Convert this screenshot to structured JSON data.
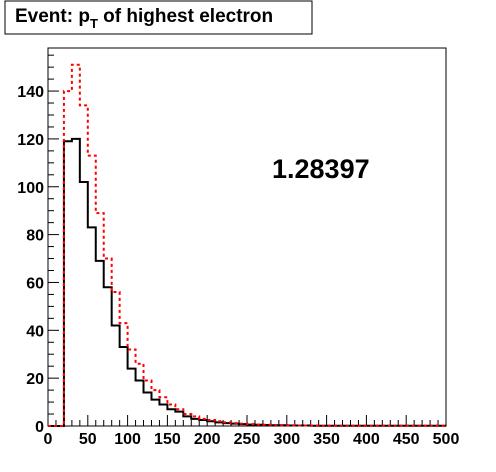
{
  "chart_data": {
    "type": "histogram",
    "title": {
      "prefix": "Event: p",
      "subscript": "T",
      "suffix": " of highest electron"
    },
    "annotation": "1.28397",
    "xlim": [
      0,
      500
    ],
    "ylim": [
      0,
      158
    ],
    "x_ticks": [
      0,
      50,
      100,
      150,
      200,
      250,
      300,
      350,
      400,
      450,
      500
    ],
    "y_ticks": [
      0,
      20,
      40,
      60,
      80,
      100,
      120,
      140
    ],
    "bin_width": 10,
    "bin_start": 0,
    "series": [
      {
        "style": "solid",
        "color": "#000000",
        "values": [
          0,
          0,
          119,
          120,
          102,
          83,
          69,
          58,
          42,
          33,
          24,
          19,
          14,
          11,
          9,
          7,
          6,
          4,
          3,
          2.5,
          2,
          1.5,
          1.2,
          1,
          0.8,
          0.6,
          0.5,
          0.4,
          0.3,
          0.3,
          0.2,
          0.2,
          0.2,
          0.1,
          0.1,
          0.1,
          0.1,
          0.1,
          0.1,
          0.1,
          0.1,
          0.1,
          0.1,
          0.1,
          0.1,
          0.1,
          0.1,
          0.1,
          0.1,
          0.1
        ]
      },
      {
        "style": "dashed",
        "color": "#ff0000",
        "values": [
          0,
          0,
          140,
          151,
          134,
          113,
          89,
          70,
          56,
          43,
          32,
          26,
          19,
          15,
          12,
          9,
          7,
          5,
          4,
          3,
          2.5,
          2,
          1.5,
          1.2,
          1,
          0.8,
          0.6,
          0.5,
          0.4,
          0.3,
          0.3,
          0.2,
          0.2,
          0.2,
          0.1,
          0.1,
          0.1,
          0.1,
          0.1,
          0.1,
          0.1,
          0.1,
          0.1,
          0.1,
          0.1,
          0.1,
          0.1,
          0.1,
          0.1,
          0.1
        ]
      }
    ]
  }
}
